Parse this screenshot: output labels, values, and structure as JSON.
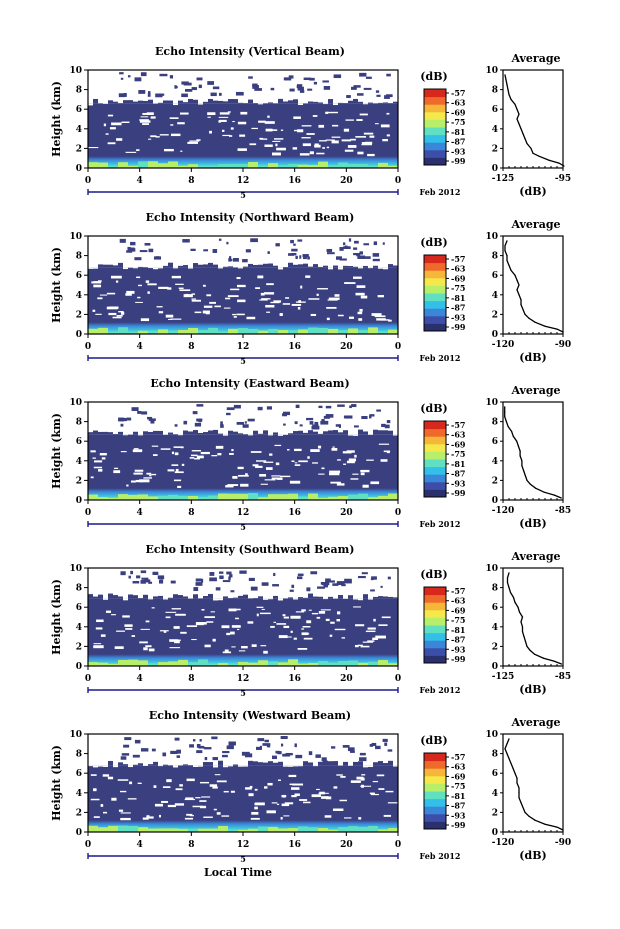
{
  "chart_data": [
    {
      "type": "heatmap",
      "title": "Echo Intensity (Vertical Beam)",
      "ylabel": "Height (km)",
      "y_ticks": [
        "0",
        "2",
        "4",
        "6",
        "8",
        "10"
      ],
      "ylim": [
        0,
        10
      ],
      "x_ticks": [
        "0",
        "4",
        "8",
        "12",
        "16",
        "20",
        "0"
      ],
      "xlim": [
        0,
        24
      ],
      "day_label": "5",
      "date_label": "Feb 2012",
      "colorbar": {
        "unit": "(dB)",
        "ticks": [
          "-57",
          "-63",
          "-69",
          "-75",
          "-81",
          "-87",
          "-93",
          "-99"
        ]
      },
      "echo_top_km": 6.6,
      "profile": {
        "title": "Average",
        "xlabel": "(dB)",
        "x_ticks": [
          "-125",
          "-95"
        ],
        "xlim": [
          -125,
          -95
        ],
        "y_ticks": [
          "0",
          "2",
          "4",
          "6",
          "8",
          "10"
        ],
        "ylim": [
          0,
          10
        ],
        "points": [
          [
            -94.5,
            0.2
          ],
          [
            -97,
            0.5
          ],
          [
            -102,
            0.8
          ],
          [
            -107,
            1.2
          ],
          [
            -110,
            1.5
          ],
          [
            -111,
            2.0
          ],
          [
            -113,
            2.5
          ],
          [
            -114,
            3.0
          ],
          [
            -115,
            3.5
          ],
          [
            -116,
            4.0
          ],
          [
            -117,
            4.5
          ],
          [
            -118,
            5.0
          ],
          [
            -117,
            5.5
          ],
          [
            -118,
            6.0
          ],
          [
            -119,
            6.5
          ],
          [
            -121,
            7.0
          ],
          [
            -122,
            7.5
          ],
          [
            -122.5,
            8.0
          ],
          [
            -123,
            8.5
          ],
          [
            -123.5,
            9.0
          ],
          [
            -124,
            9.5
          ]
        ]
      }
    },
    {
      "type": "heatmap",
      "title": "Echo Intensity (Northward Beam)",
      "ylabel": "Height (km)",
      "y_ticks": [
        "0",
        "2",
        "4",
        "6",
        "8",
        "10"
      ],
      "ylim": [
        0,
        10
      ],
      "x_ticks": [
        "0",
        "4",
        "8",
        "12",
        "16",
        "20",
        "0"
      ],
      "xlim": [
        0,
        24
      ],
      "day_label": "5",
      "date_label": "Feb 2012",
      "colorbar": {
        "unit": "(dB)",
        "ticks": [
          "-57",
          "-63",
          "-69",
          "-75",
          "-81",
          "-87",
          "-93",
          "-99"
        ]
      },
      "echo_top_km": 6.8,
      "profile": {
        "title": "Average",
        "xlabel": "(dB)",
        "x_ticks": [
          "-120",
          "-90"
        ],
        "xlim": [
          -120,
          -90
        ],
        "y_ticks": [
          "0",
          "2",
          "4",
          "6",
          "8",
          "10"
        ],
        "ylim": [
          0,
          10
        ],
        "points": [
          [
            -90,
            0.2
          ],
          [
            -93,
            0.5
          ],
          [
            -99,
            0.8
          ],
          [
            -104,
            1.2
          ],
          [
            -107,
            1.6
          ],
          [
            -109,
            2.0
          ],
          [
            -110,
            2.5
          ],
          [
            -111,
            3.0
          ],
          [
            -111,
            3.5
          ],
          [
            -112,
            4.0
          ],
          [
            -113,
            4.5
          ],
          [
            -112,
            5.0
          ],
          [
            -113,
            5.5
          ],
          [
            -114,
            6.0
          ],
          [
            -116,
            6.5
          ],
          [
            -117,
            7.0
          ],
          [
            -118,
            7.5
          ],
          [
            -118,
            8.0
          ],
          [
            -119,
            8.5
          ],
          [
            -119,
            9.0
          ],
          [
            -118,
            9.5
          ]
        ]
      }
    },
    {
      "type": "heatmap",
      "title": "Echo Intensity (Eastward Beam)",
      "ylabel": "Height (km)",
      "y_ticks": [
        "0",
        "2",
        "4",
        "6",
        "8",
        "10"
      ],
      "ylim": [
        0,
        10
      ],
      "x_ticks": [
        "0",
        "4",
        "8",
        "12",
        "16",
        "20",
        "0"
      ],
      "xlim": [
        0,
        24
      ],
      "day_label": "5",
      "date_label": "Feb 2012",
      "colorbar": {
        "unit": "(dB)",
        "ticks": [
          "-57",
          "-63",
          "-69",
          "-75",
          "-81",
          "-87",
          "-93",
          "-99"
        ]
      },
      "echo_top_km": 6.7,
      "profile": {
        "title": "Average",
        "xlabel": "(dB)",
        "x_ticks": [
          "-120",
          "-85"
        ],
        "xlim": [
          -120,
          -85
        ],
        "y_ticks": [
          "0",
          "2",
          "4",
          "6",
          "8",
          "10"
        ],
        "ylim": [
          0,
          10
        ],
        "points": [
          [
            -86,
            0.2
          ],
          [
            -90,
            0.5
          ],
          [
            -96,
            0.8
          ],
          [
            -101,
            1.2
          ],
          [
            -104,
            1.6
          ],
          [
            -106,
            2.0
          ],
          [
            -107,
            2.5
          ],
          [
            -108,
            3.0
          ],
          [
            -109,
            3.5
          ],
          [
            -109,
            4.0
          ],
          [
            -110,
            4.5
          ],
          [
            -110,
            5.0
          ],
          [
            -111,
            5.5
          ],
          [
            -112,
            6.0
          ],
          [
            -114,
            6.5
          ],
          [
            -115,
            7.0
          ],
          [
            -117,
            7.5
          ],
          [
            -118,
            8.0
          ],
          [
            -119,
            8.5
          ],
          [
            -119,
            9.0
          ],
          [
            -119,
            9.5
          ]
        ]
      }
    },
    {
      "type": "heatmap",
      "title": "Echo Intensity (Southward Beam)",
      "ylabel": "Height (km)",
      "y_ticks": [
        "0",
        "2",
        "4",
        "6",
        "8",
        "10"
      ],
      "ylim": [
        0,
        10
      ],
      "x_ticks": [
        "0",
        "4",
        "8",
        "12",
        "16",
        "20",
        "0"
      ],
      "xlim": [
        0,
        24
      ],
      "day_label": "5",
      "date_label": "Feb 2012",
      "colorbar": {
        "unit": "(dB)",
        "ticks": [
          "-57",
          "-63",
          "-69",
          "-75",
          "-81",
          "-87",
          "-93",
          "-99"
        ]
      },
      "echo_top_km": 6.9,
      "profile": {
        "title": "Average",
        "xlabel": "(dB)",
        "x_ticks": [
          "-125",
          "-85"
        ],
        "xlim": [
          -125,
          -85
        ],
        "y_ticks": [
          "0",
          "2",
          "4",
          "6",
          "8",
          "10"
        ],
        "ylim": [
          0,
          10
        ],
        "points": [
          [
            -86,
            0.2
          ],
          [
            -91,
            0.5
          ],
          [
            -98,
            0.8
          ],
          [
            -104,
            1.2
          ],
          [
            -107,
            1.6
          ],
          [
            -109,
            2.0
          ],
          [
            -110,
            2.5
          ],
          [
            -111,
            3.0
          ],
          [
            -112,
            3.5
          ],
          [
            -112,
            4.0
          ],
          [
            -113,
            4.5
          ],
          [
            -112,
            5.0
          ],
          [
            -114,
            5.5
          ],
          [
            -115,
            6.0
          ],
          [
            -117,
            6.5
          ],
          [
            -118,
            7.0
          ],
          [
            -120,
            7.5
          ],
          [
            -121,
            8.0
          ],
          [
            -122,
            8.5
          ],
          [
            -122,
            9.0
          ],
          [
            -121,
            9.5
          ]
        ]
      }
    },
    {
      "type": "heatmap",
      "title": "Echo Intensity (Westward Beam)",
      "ylabel": "Height (km)",
      "y_ticks": [
        "0",
        "2",
        "4",
        "6",
        "8",
        "10"
      ],
      "ylim": [
        0,
        10
      ],
      "x_ticks": [
        "0",
        "4",
        "8",
        "12",
        "16",
        "20",
        "0"
      ],
      "xlim": [
        0,
        24
      ],
      "day_label": "5",
      "date_label": "Feb 2012",
      "xlabel": "Local Time",
      "colorbar": {
        "unit": "(dB)",
        "ticks": [
          "-57",
          "-63",
          "-69",
          "-75",
          "-81",
          "-87",
          "-93",
          "-99"
        ]
      },
      "echo_top_km": 6.8,
      "profile": {
        "title": "Average",
        "xlabel": "(dB)",
        "x_ticks": [
          "-120",
          "-90"
        ],
        "xlim": [
          -120,
          -90
        ],
        "y_ticks": [
          "0",
          "2",
          "4",
          "6",
          "8",
          "10"
        ],
        "ylim": [
          0,
          10
        ],
        "points": [
          [
            -90,
            0.2
          ],
          [
            -93,
            0.5
          ],
          [
            -99,
            0.8
          ],
          [
            -104,
            1.2
          ],
          [
            -107,
            1.6
          ],
          [
            -109,
            2.0
          ],
          [
            -110,
            2.5
          ],
          [
            -111,
            3.0
          ],
          [
            -112,
            3.5
          ],
          [
            -112,
            4.0
          ],
          [
            -112,
            4.5
          ],
          [
            -113,
            5.0
          ],
          [
            -113,
            5.5
          ],
          [
            -114,
            6.0
          ],
          [
            -115,
            6.5
          ],
          [
            -116,
            7.0
          ],
          [
            -117,
            7.5
          ],
          [
            -118,
            8.0
          ],
          [
            -119,
            8.5
          ],
          [
            -118,
            9.0
          ],
          [
            -117,
            9.5
          ]
        ]
      }
    }
  ],
  "colors": {
    "background_echo": "#3a3f7f",
    "colormap": [
      "#2a2f6e",
      "#3c4ea8",
      "#3a86d8",
      "#33c0e8",
      "#5fe0c0",
      "#b8ef6a",
      "#f5e84a",
      "#f6b63a",
      "#ef6a2a",
      "#d7281e"
    ]
  }
}
